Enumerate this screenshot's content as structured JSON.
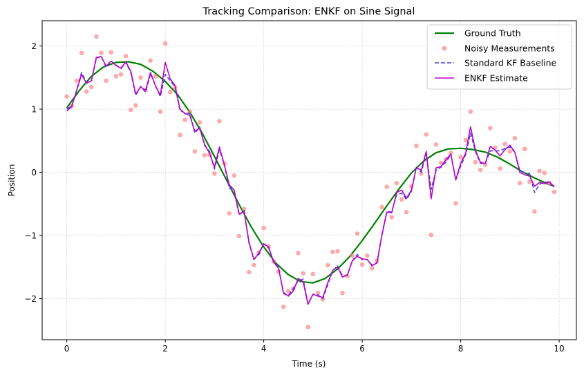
{
  "colors": {
    "ground_truth": "#008000",
    "measurements": "#ff7f7f",
    "kf": "#4444dd",
    "enkf": "#bb00cc",
    "grid": "#cccccc"
  },
  "chart_data": {
    "type": "line",
    "title": "Tracking Comparison: ENKF on Sine Signal",
    "xlabel": "Time (s)",
    "ylabel": "Position",
    "xlim": [
      -0.5,
      10.35
    ],
    "ylim": [
      -2.65,
      2.4
    ],
    "xticks": [
      0,
      2,
      4,
      6,
      8,
      10
    ],
    "xtick_labels": [
      "0",
      "2",
      "4",
      "6",
      "8",
      "10"
    ],
    "yticks": [
      -2,
      -1,
      0,
      1,
      2
    ],
    "ytick_labels": [
      "−2",
      "−1",
      "0",
      "1",
      "2"
    ],
    "grid": true,
    "legend_position": "top-right",
    "legend": [
      "Ground Truth",
      "Noisy Measurements",
      "Standard KF Baseline",
      "ENKF Estimate"
    ],
    "ground_truth": {
      "name": "Ground Truth",
      "x": [
        0,
        0.25,
        0.5,
        0.75,
        1.0,
        1.25,
        1.5,
        1.75,
        2.0,
        2.25,
        2.5,
        2.75,
        3.0,
        3.25,
        3.5,
        3.75,
        4.0,
        4.25,
        4.5,
        4.75,
        5.0,
        5.25,
        5.5,
        5.75,
        6.0,
        6.25,
        6.5,
        6.75,
        7.0,
        7.25,
        7.5,
        7.75,
        8.0,
        8.25,
        8.5,
        8.75,
        9.0,
        9.25,
        9.5,
        9.75,
        9.9
      ],
      "y": [
        1.02,
        1.29,
        1.52,
        1.67,
        1.74,
        1.75,
        1.71,
        1.6,
        1.44,
        1.23,
        0.95,
        0.62,
        0.25,
        -0.13,
        -0.51,
        -0.87,
        -1.18,
        -1.44,
        -1.62,
        -1.73,
        -1.75,
        -1.68,
        -1.53,
        -1.33,
        -1.08,
        -0.81,
        -0.53,
        -0.26,
        -0.01,
        0.18,
        0.31,
        0.37,
        0.38,
        0.36,
        0.32,
        0.24,
        0.13,
        0.01,
        -0.09,
        -0.18,
        -0.22
      ]
    },
    "measurements": {
      "name": "Noisy Measurements",
      "x": [
        0,
        0.1,
        0.2,
        0.3,
        0.4,
        0.5,
        0.6,
        0.7,
        0.8,
        0.9,
        1.0,
        1.1,
        1.2,
        1.3,
        1.4,
        1.5,
        1.6,
        1.7,
        1.8,
        1.9,
        2.0,
        2.1,
        2.2,
        2.3,
        2.4,
        2.5,
        2.6,
        2.7,
        2.8,
        2.9,
        3.0,
        3.1,
        3.2,
        3.3,
        3.4,
        3.5,
        3.6,
        3.7,
        3.8,
        3.9,
        4.0,
        4.1,
        4.2,
        4.3,
        4.4,
        4.5,
        4.6,
        4.7,
        4.8,
        4.9,
        5.0,
        5.1,
        5.2,
        5.3,
        5.4,
        5.5,
        5.6,
        5.7,
        5.8,
        5.9,
        6.0,
        6.1,
        6.2,
        6.3,
        6.4,
        6.5,
        6.6,
        6.7,
        6.8,
        6.9,
        7.0,
        7.1,
        7.2,
        7.3,
        7.4,
        7.5,
        7.6,
        7.7,
        7.8,
        7.9,
        8.0,
        8.1,
        8.2,
        8.3,
        8.4,
        8.5,
        8.6,
        8.7,
        8.8,
        8.9,
        9.0,
        9.1,
        9.2,
        9.3,
        9.4,
        9.5,
        9.6,
        9.7,
        9.8,
        9.9
      ],
      "y": [
        1.2,
        1.05,
        1.45,
        1.89,
        1.28,
        1.35,
        2.15,
        1.89,
        1.45,
        1.9,
        1.52,
        1.55,
        1.84,
        0.99,
        1.06,
        1.5,
        1.3,
        1.77,
        1.52,
        0.96,
        2.04,
        1.27,
        1.34,
        0.59,
        0.83,
        0.96,
        0.33,
        0.79,
        0.27,
        0.28,
        -0.02,
        0.81,
        0.14,
        -0.65,
        -0.05,
        -1.01,
        -0.58,
        -1.58,
        -1.47,
        -1.27,
        -0.88,
        -1.17,
        -1.41,
        -1.57,
        -2.13,
        -1.88,
        -1.84,
        -1.28,
        -1.6,
        -2.45,
        -1.61,
        -1.91,
        -2.01,
        -1.47,
        -1.26,
        -1.25,
        -1.91,
        -1.64,
        -1.32,
        -0.97,
        -1.46,
        -1.32,
        -1.52,
        -1.4,
        -0.55,
        -0.23,
        -0.71,
        -0.17,
        -0.43,
        -0.63,
        -0.22,
        0.42,
        -0.02,
        0.6,
        -0.99,
        0.44,
        0.15,
        0.21,
        0.31,
        -0.49,
        0.24,
        0.51,
        0.96,
        0.16,
        0.04,
        0.12,
        0.7,
        0.39,
        0.06,
        0.45,
        0.33,
        0.54,
        -0.17,
        0.37,
        -0.15,
        -0.62,
        0.02,
        -0.01,
        -0.17,
        -0.31
      ]
    },
    "kf": {
      "name": "Standard KF Baseline",
      "x": [
        0,
        0.1,
        0.2,
        0.3,
        0.4,
        0.5,
        0.6,
        0.7,
        0.8,
        0.9,
        1.0,
        1.1,
        1.2,
        1.3,
        1.4,
        1.5,
        1.6,
        1.7,
        1.8,
        1.9,
        2.0,
        2.1,
        2.2,
        2.3,
        2.4,
        2.5,
        2.6,
        2.7,
        2.8,
        2.9,
        3.0,
        3.1,
        3.2,
        3.3,
        3.4,
        3.5,
        3.6,
        3.7,
        3.8,
        3.9,
        4.0,
        4.1,
        4.2,
        4.3,
        4.4,
        4.5,
        4.6,
        4.7,
        4.8,
        4.9,
        5.0,
        5.1,
        5.2,
        5.3,
        5.4,
        5.5,
        5.6,
        5.7,
        5.8,
        5.9,
        6.0,
        6.1,
        6.2,
        6.3,
        6.4,
        6.5,
        6.6,
        6.7,
        6.8,
        6.9,
        7.0,
        7.1,
        7.2,
        7.3,
        7.4,
        7.5,
        7.6,
        7.7,
        7.8,
        7.9,
        8.0,
        8.1,
        8.2,
        8.3,
        8.4,
        8.5,
        8.6,
        8.7,
        8.8,
        8.9,
        9.0,
        9.1,
        9.2,
        9.3,
        9.4,
        9.5,
        9.6,
        9.7,
        9.8,
        9.9
      ],
      "y": [
        1.0,
        1.05,
        1.3,
        1.58,
        1.42,
        1.45,
        1.8,
        1.84,
        1.66,
        1.76,
        1.7,
        1.64,
        1.74,
        1.58,
        1.22,
        1.36,
        1.27,
        1.56,
        1.38,
        1.2,
        1.55,
        1.45,
        1.35,
        0.98,
        0.94,
        0.93,
        0.62,
        0.72,
        0.42,
        0.33,
        0.05,
        0.36,
        0.12,
        -0.25,
        -0.3,
        -0.68,
        -0.6,
        -1.12,
        -1.38,
        -1.3,
        -1.13,
        -1.2,
        -1.41,
        -1.5,
        -1.92,
        -1.95,
        -1.84,
        -1.72,
        -1.69,
        -2.08,
        -1.93,
        -1.94,
        -2.0,
        -1.78,
        -1.56,
        -1.48,
        -1.64,
        -1.63,
        -1.4,
        -1.3,
        -1.38,
        -1.38,
        -1.47,
        -1.44,
        -0.98,
        -0.62,
        -0.63,
        -0.35,
        -0.33,
        -0.43,
        -0.3,
        0.08,
        0.0,
        0.3,
        -0.27,
        0.03,
        0.08,
        0.16,
        0.28,
        -0.12,
        0.1,
        0.28,
        0.62,
        0.33,
        0.14,
        0.14,
        0.34,
        0.34,
        0.34,
        0.38,
        0.4,
        0.32,
        0.03,
        -0.01,
        -0.02,
        -0.32,
        -0.19,
        -0.15,
        -0.16,
        -0.24
      ]
    },
    "enkf": {
      "name": "ENKF Estimate",
      "x": [
        0,
        0.1,
        0.2,
        0.3,
        0.4,
        0.5,
        0.6,
        0.7,
        0.8,
        0.9,
        1.0,
        1.1,
        1.2,
        1.3,
        1.4,
        1.5,
        1.6,
        1.7,
        1.8,
        1.9,
        2.0,
        2.1,
        2.2,
        2.3,
        2.4,
        2.5,
        2.6,
        2.7,
        2.8,
        2.9,
        3.0,
        3.1,
        3.2,
        3.3,
        3.4,
        3.5,
        3.6,
        3.7,
        3.8,
        3.9,
        4.0,
        4.1,
        4.2,
        4.3,
        4.4,
        4.5,
        4.6,
        4.7,
        4.8,
        4.9,
        5.0,
        5.1,
        5.2,
        5.3,
        5.4,
        5.5,
        5.6,
        5.7,
        5.8,
        5.9,
        6.0,
        6.1,
        6.2,
        6.3,
        6.4,
        6.5,
        6.6,
        6.7,
        6.8,
        6.9,
        7.0,
        7.1,
        7.2,
        7.3,
        7.4,
        7.5,
        7.6,
        7.7,
        7.8,
        7.9,
        8.0,
        8.1,
        8.2,
        8.3,
        8.4,
        8.5,
        8.6,
        8.7,
        8.8,
        8.9,
        9.0,
        9.1,
        9.2,
        9.3,
        9.4,
        9.5,
        9.6,
        9.7,
        9.8,
        9.9
      ],
      "y": [
        0.97,
        1.04,
        1.29,
        1.55,
        1.41,
        1.45,
        1.82,
        1.83,
        1.68,
        1.76,
        1.69,
        1.65,
        1.75,
        1.6,
        1.24,
        1.35,
        1.3,
        1.58,
        1.37,
        1.22,
        1.74,
        1.48,
        1.37,
        1.0,
        0.93,
        0.9,
        0.65,
        0.7,
        0.44,
        0.3,
        0.08,
        0.4,
        0.12,
        -0.2,
        -0.28,
        -0.66,
        -0.62,
        -1.1,
        -1.38,
        -1.28,
        -1.13,
        -1.18,
        -1.42,
        -1.52,
        -1.9,
        -1.96,
        -1.88,
        -1.68,
        -1.73,
        -2.09,
        -1.93,
        -1.96,
        -1.98,
        -1.75,
        -1.55,
        -1.5,
        -1.66,
        -1.62,
        -1.4,
        -1.33,
        -1.37,
        -1.38,
        -1.48,
        -1.43,
        -1.0,
        -0.63,
        -0.64,
        -0.32,
        -0.28,
        -0.41,
        -0.28,
        0.08,
        0.03,
        0.33,
        -0.42,
        0.07,
        0.09,
        0.2,
        0.29,
        -0.12,
        0.14,
        0.3,
        0.72,
        0.35,
        0.16,
        0.14,
        0.41,
        0.35,
        0.26,
        0.36,
        0.43,
        0.32,
        0.0,
        -0.04,
        -0.06,
        -0.22,
        -0.16,
        -0.18,
        -0.15,
        -0.23
      ]
    }
  }
}
